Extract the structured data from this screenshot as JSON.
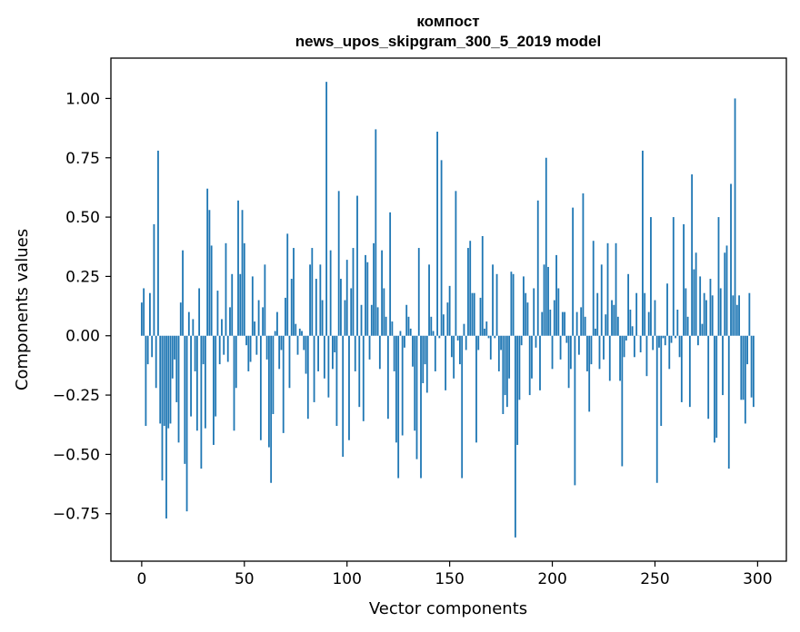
{
  "chart_data": {
    "type": "bar",
    "title": "компост",
    "subtitle": "news_upos_skipgram_300_5_2019 model",
    "xlabel": "Vector components",
    "ylabel": "Components values",
    "xlim": [
      -15,
      314
    ],
    "ylim": [
      -0.95,
      1.17
    ],
    "x_ticks": [
      0,
      50,
      100,
      150,
      200,
      250,
      300
    ],
    "x_tick_labels": [
      "0",
      "50",
      "100",
      "150",
      "200",
      "250",
      "300"
    ],
    "y_ticks": [
      1.0,
      0.75,
      0.5,
      0.25,
      0.0,
      -0.25,
      -0.5,
      -0.75
    ],
    "y_tick_labels": [
      "1.00",
      "0.75",
      "0.50",
      "0.25",
      "0.00",
      "−0.25",
      "−0.50",
      "−0.75"
    ],
    "bar_color": "#1f77b4",
    "series": [
      {
        "name": "компост",
        "values": [
          0.14,
          0.2,
          -0.38,
          -0.12,
          0.18,
          -0.09,
          0.47,
          -0.22,
          0.78,
          -0.37,
          -0.61,
          -0.38,
          -0.77,
          -0.39,
          -0.37,
          -0.18,
          -0.1,
          -0.28,
          -0.45,
          0.14,
          0.36,
          -0.54,
          -0.74,
          0.1,
          -0.34,
          0.07,
          -0.15,
          -0.4,
          0.2,
          -0.56,
          -0.12,
          -0.39,
          0.62,
          0.53,
          0.38,
          -0.46,
          -0.34,
          0.19,
          -0.12,
          0.07,
          -0.08,
          0.39,
          -0.11,
          0.12,
          0.26,
          -0.4,
          -0.22,
          0.57,
          0.26,
          0.53,
          0.39,
          -0.04,
          -0.15,
          -0.11,
          0.25,
          0.06,
          -0.08,
          0.15,
          -0.44,
          0.12,
          0.3,
          -0.1,
          -0.47,
          -0.62,
          -0.33,
          0.02,
          0.1,
          -0.14,
          -0.06,
          -0.41,
          0.16,
          0.43,
          -0.22,
          0.24,
          0.37,
          0.05,
          -0.08,
          0.03,
          0.02,
          -0.06,
          -0.16,
          -0.35,
          0.3,
          0.37,
          -0.28,
          0.24,
          -0.15,
          0.3,
          0.15,
          -0.18,
          1.07,
          -0.26,
          0.36,
          -0.14,
          -0.07,
          -0.38,
          0.61,
          0.24,
          -0.51,
          0.15,
          0.32,
          -0.44,
          0.2,
          0.37,
          -0.15,
          0.59,
          -0.3,
          0.13,
          -0.36,
          0.34,
          0.31,
          -0.1,
          0.13,
          0.39,
          0.87,
          0.12,
          -0.14,
          0.36,
          0.2,
          0.08,
          -0.35,
          0.52,
          0.06,
          -0.15,
          -0.45,
          -0.6,
          0.02,
          -0.42,
          -0.05,
          0.13,
          0.08,
          0.03,
          -0.13,
          -0.4,
          -0.52,
          0.37,
          -0.6,
          -0.2,
          -0.12,
          -0.24,
          0.3,
          0.08,
          0.02,
          -0.15,
          0.86,
          -0.01,
          0.74,
          0.09,
          -0.23,
          0.14,
          0.21,
          -0.09,
          -0.18,
          0.61,
          -0.02,
          -0.12,
          -0.6,
          0.05,
          -0.06,
          0.37,
          0.4,
          0.18,
          0.18,
          -0.45,
          -0.06,
          0.16,
          0.42,
          0.03,
          0.06,
          -0.01,
          -0.1,
          0.3,
          -0.01,
          0.26,
          -0.15,
          -0.06,
          -0.33,
          -0.25,
          -0.3,
          -0.18,
          0.27,
          0.26,
          -0.85,
          -0.46,
          -0.27,
          -0.04,
          0.25,
          0.18,
          0.14,
          -0.25,
          -0.18,
          0.2,
          -0.05,
          0.57,
          -0.23,
          0.1,
          0.3,
          0.75,
          0.29,
          0.11,
          -0.14,
          0.15,
          0.34,
          0.2,
          -0.1,
          0.1,
          0.1,
          -0.03,
          -0.22,
          -0.14,
          0.54,
          -0.63,
          0.1,
          -0.08,
          0.12,
          0.6,
          0.08,
          -0.15,
          -0.32,
          -0.12,
          0.4,
          0.03,
          0.18,
          -0.14,
          0.3,
          -0.1,
          0.09,
          0.39,
          -0.19,
          0.15,
          0.13,
          0.39,
          0.08,
          -0.19,
          -0.55,
          -0.09,
          -0.02,
          0.26,
          0.11,
          0.04,
          -0.09,
          0.18,
          0.0,
          -0.07,
          0.78,
          0.18,
          -0.17,
          0.1,
          0.5,
          -0.06,
          0.15,
          -0.62,
          -0.05,
          -0.38,
          -0.01,
          -0.04,
          0.22,
          -0.14,
          -0.03,
          0.5,
          -0.01,
          0.11,
          -0.09,
          -0.28,
          0.47,
          0.2,
          0.08,
          -0.3,
          0.68,
          0.28,
          0.35,
          -0.04,
          0.25,
          0.05,
          0.18,
          0.15,
          -0.35,
          0.24,
          0.17,
          -0.45,
          -0.43,
          0.5,
          0.2,
          -0.25,
          0.35,
          0.38,
          -0.56,
          0.64,
          0.17,
          1.0,
          0.13,
          0.17,
          -0.27,
          -0.27,
          -0.37,
          -0.12,
          0.18,
          -0.26,
          -0.3
        ]
      }
    ]
  }
}
